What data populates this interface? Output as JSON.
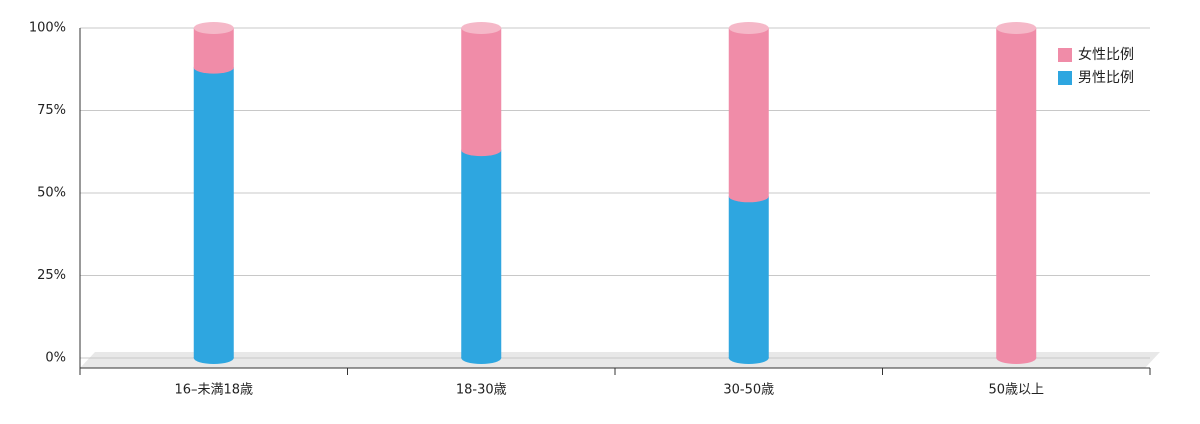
{
  "chart_data": {
    "type": "stacked-cylinder",
    "categories": [
      "16–未満18歳",
      "18-30歳",
      "30-50歳",
      "50歳以上"
    ],
    "series": [
      {
        "name": "男性比例",
        "color": "#2ea6e0",
        "values": [
          88,
          63,
          49,
          0
        ]
      },
      {
        "name": "女性比例",
        "color": "#f08ca8",
        "values": [
          12,
          37,
          51,
          100
        ]
      }
    ],
    "ylim": [
      0,
      100
    ],
    "yticks": [
      {
        "value": 0,
        "label": "0%"
      },
      {
        "value": 25,
        "label": "25%"
      },
      {
        "value": 50,
        "label": "50%"
      },
      {
        "value": 75,
        "label": "75%"
      },
      {
        "value": 100,
        "label": "100%"
      }
    ],
    "grid": true,
    "legend": "top-right"
  }
}
